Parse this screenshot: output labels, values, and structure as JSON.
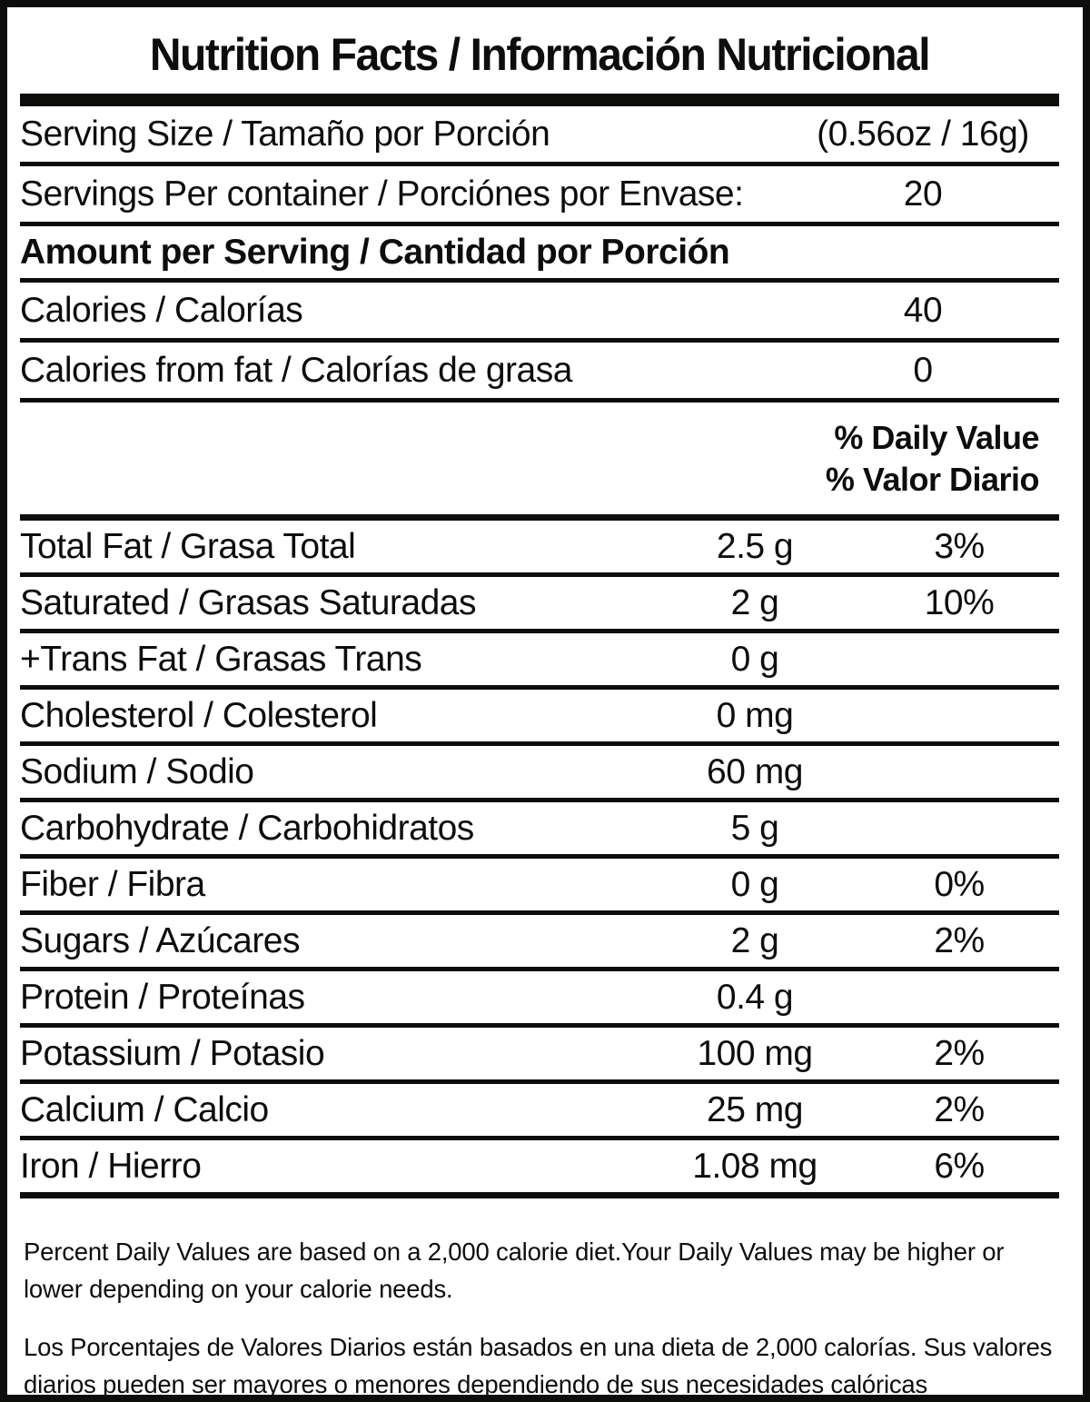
{
  "label": {
    "title": "Nutrition Facts / Información Nutricional",
    "serving_size": {
      "label": "Serving Size / Tamaño por Porción",
      "value": "(0.56oz / 16g)"
    },
    "servings_per_container": {
      "label": "Servings Per container / Porciónes por Envase:",
      "value": "20"
    },
    "amount_per_serving_heading": "Amount per Serving / Cantidad por Porción",
    "calories": {
      "label": "Calories / Calorías",
      "value": "40"
    },
    "calories_from_fat": {
      "label": "Calories from fat / Calorías de grasa",
      "value": "0"
    },
    "daily_value_heading": {
      "line1": "% Daily Value",
      "line2": "% Valor Diario"
    },
    "nutrients": [
      {
        "label": "Total Fat / Grasa Total",
        "amount": "2.5 g",
        "percent": "3%"
      },
      {
        "label": "Saturated / Grasas Saturadas",
        "amount": "2 g",
        "percent": "10%"
      },
      {
        "label": "+Trans Fat / Grasas Trans",
        "amount": "0 g",
        "percent": ""
      },
      {
        "label": "Cholesterol / Colesterol",
        "amount": "0 mg",
        "percent": ""
      },
      {
        "label": "Sodium / Sodio",
        "amount": "60 mg",
        "percent": ""
      },
      {
        "label": "Carbohydrate / Carbohidratos",
        "amount": "5 g",
        "percent": ""
      },
      {
        "label": "Fiber / Fibra",
        "amount": "0 g",
        "percent": "0%"
      },
      {
        "label": "Sugars / Azúcares",
        "amount": "2 g",
        "percent": "2%"
      },
      {
        "label": "Protein / Proteínas",
        "amount": "0.4 g",
        "percent": ""
      },
      {
        "label": "Potassium / Potasio",
        "amount": "100 mg",
        "percent": "2%"
      },
      {
        "label": "Calcium / Calcio",
        "amount": "25 mg",
        "percent": "2%"
      },
      {
        "label": "Iron / Hierro",
        "amount": "1.08 mg",
        "percent": "6%"
      }
    ],
    "footnotes": {
      "english": "Percent Daily Values are based on a 2,000 calorie diet.Your Daily Values may be higher or lower depending on your calorie needs.",
      "spanish": "Los Porcentajes de Valores Diarios están basados en una dieta de 2,000 calorías. Sus valores diarios pueden ser mayores o menores dependiendo de sus necesidades calóricas"
    },
    "colors": {
      "text": "#0d0d0c",
      "background": "#ffffff"
    }
  }
}
